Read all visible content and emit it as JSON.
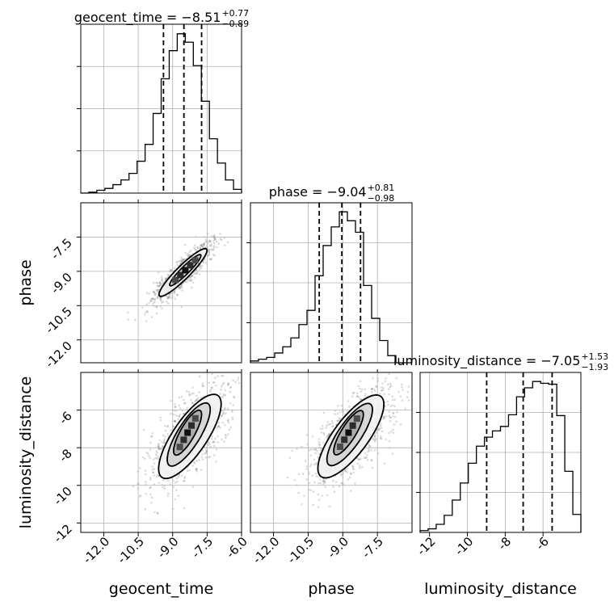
{
  "chart_data": {
    "type": "corner",
    "parameters": [
      "geocent_time",
      "phase",
      "luminosity_distance"
    ],
    "axis_labels": {
      "x": [
        "geocent_time",
        "phase",
        "luminosity_distance"
      ],
      "y": [
        "phase",
        "luminosity_distance"
      ]
    },
    "ranges": [
      [
        -13.0,
        -6.0
      ],
      [
        -13.0,
        -6.0
      ],
      [
        -12.5,
        -4.0
      ]
    ],
    "ticks": {
      "geocent_time": [
        "-12.0",
        "-10.5",
        "-9.0",
        "-7.5",
        "-6.0"
      ],
      "phase": [
        "-12.0",
        "-10.5",
        "-9.0",
        "-7.5"
      ],
      "luminosity_distance": [
        "-12",
        "-10",
        "-8",
        "-6"
      ]
    },
    "summaries": [
      {
        "parameter": "geocent_time",
        "label": "geocent_time = −8.51",
        "median": -8.51,
        "plus": "+0.77",
        "minus": "−0.89",
        "quantiles": [
          -9.4,
          -8.51,
          -7.74
        ]
      },
      {
        "parameter": "phase",
        "label": "phase = −9.04",
        "median": -9.04,
        "plus": "+0.81",
        "minus": "−0.98",
        "quantiles": [
          -10.02,
          -9.04,
          -8.23
        ]
      },
      {
        "parameter": "luminosity_distance",
        "label": "luminosity_distance = −7.05",
        "median": -7.05,
        "plus": "+1.53",
        "minus": "−1.93",
        "quantiles": [
          -8.98,
          -7.05,
          -5.52
        ]
      }
    ],
    "histograms": [
      {
        "parameter": "geocent_time",
        "bin_edges": [
          -13.0,
          -12.65,
          -12.3,
          -11.95,
          -11.6,
          -11.25,
          -10.9,
          -10.55,
          -10.2,
          -9.85,
          -9.5,
          -9.15,
          -8.8,
          -8.45,
          -8.1,
          -7.75,
          -7.4,
          -7.05,
          -6.7,
          -6.35,
          -6.0
        ],
        "counts": [
          0,
          1,
          3,
          5,
          9,
          14,
          21,
          34,
          52,
          85,
          122,
          152,
          170,
          161,
          136,
          98,
          58,
          32,
          14,
          4
        ]
      },
      {
        "parameter": "phase",
        "bin_edges": [
          -13.0,
          -12.65,
          -12.3,
          -11.95,
          -11.6,
          -11.25,
          -10.9,
          -10.55,
          -10.2,
          -9.85,
          -9.5,
          -9.15,
          -8.8,
          -8.45,
          -8.1,
          -7.75,
          -7.4,
          -7.05,
          -6.7,
          -6.35,
          -6.0
        ],
        "counts": [
          2,
          4,
          6,
          11,
          18,
          28,
          43,
          59,
          98,
          132,
          153,
          170,
          160,
          147,
          87,
          50,
          25,
          8,
          0,
          0
        ]
      },
      {
        "parameter": "luminosity_distance",
        "bin_edges": [
          -12.5,
          -12.075,
          -11.65,
          -11.225,
          -10.8,
          -10.375,
          -9.95,
          -9.525,
          -9.1,
          -8.675,
          -8.25,
          -7.825,
          -7.4,
          -6.975,
          -6.55,
          -6.125,
          -5.7,
          -5.275,
          -4.85,
          -4.425,
          -4.0
        ],
        "counts": [
          2,
          4,
          9,
          19,
          36,
          55,
          77,
          96,
          106,
          113,
          118,
          131,
          151,
          161,
          168,
          166,
          165,
          130,
          68,
          20
        ]
      }
    ],
    "contours_2d": [
      {
        "x": "geocent_time",
        "y": "phase",
        "levels": [
          {
            "cx": -8.55,
            "cy": -9.05,
            "rx": 1.45,
            "ry": 0.29,
            "angle_deg": 45
          },
          {
            "cx": -8.45,
            "cy": -8.95,
            "rx": 0.95,
            "ry": 0.17,
            "angle_deg": 45
          }
        ]
      },
      {
        "x": "geocent_time",
        "y": "luminosity_distance",
        "levels": [
          {
            "cx": -8.25,
            "cy": -7.4,
            "rx": 2.5,
            "ry": 0.78,
            "angle_deg": 62
          },
          {
            "cx": -8.3,
            "cy": -7.3,
            "rx": 1.85,
            "ry": 0.52,
            "angle_deg": 64
          },
          {
            "cx": -8.35,
            "cy": -7.2,
            "rx": 1.3,
            "ry": 0.33,
            "angle_deg": 66
          }
        ]
      },
      {
        "x": "phase",
        "y": "luminosity_distance",
        "levels": [
          {
            "cx": -8.65,
            "cy": -7.4,
            "rx": 2.5,
            "ry": 0.8,
            "angle_deg": 60
          },
          {
            "cx": -8.7,
            "cy": -7.3,
            "rx": 1.85,
            "ry": 0.53,
            "angle_deg": 62
          },
          {
            "cx": -8.75,
            "cy": -7.2,
            "rx": 1.3,
            "ry": 0.33,
            "angle_deg": 64
          }
        ]
      }
    ],
    "grid": true
  }
}
